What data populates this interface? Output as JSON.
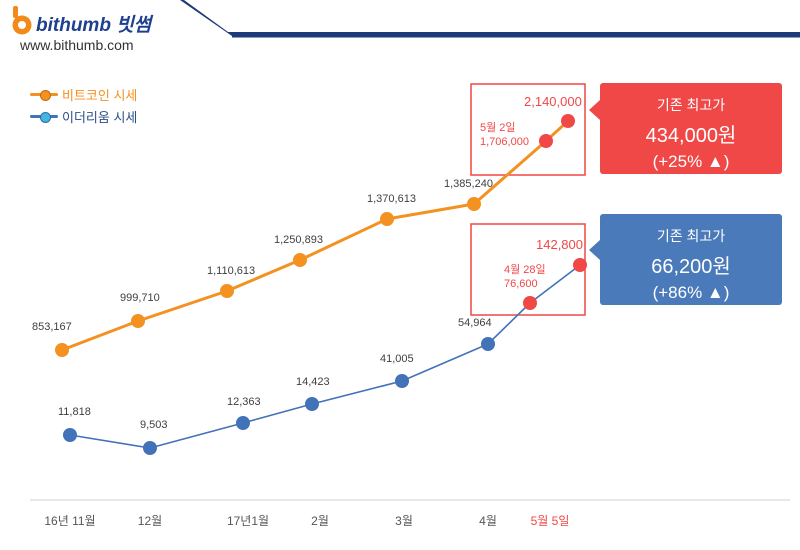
{
  "brand": {
    "name": "bithumb 빗썸",
    "url": "www.bithumb.com"
  },
  "colors": {
    "bitcoin": "#f39121",
    "ethereum": "#4272b8",
    "highlight": "#f04747",
    "callout_eth": "#4a7ab9"
  },
  "legend": [
    {
      "label": "비트코인 시세",
      "color": "#f39121"
    },
    {
      "label": "이더리움 시세",
      "color": "#4272b8"
    }
  ],
  "chart_data": {
    "type": "line",
    "categories": [
      "16년 11월",
      "12월",
      "17년1월",
      "2월",
      "3월",
      "4월",
      "5월 5일"
    ],
    "highlight_category": "5월 5일",
    "series": [
      {
        "name": "비트코인 시세",
        "color": "#f39121",
        "points": [
          {
            "x": "16년 11월",
            "y": 853167,
            "label": "853,167"
          },
          {
            "x": "12월",
            "y": 999710,
            "label": "999,710"
          },
          {
            "x": "17년1월",
            "y": 1110613,
            "label": "1,110,613"
          },
          {
            "x": "2월",
            "y": 1250893,
            "label": "1,250,893"
          },
          {
            "x": "3월",
            "y": 1370613,
            "label": "1,370,613"
          },
          {
            "x": "4월",
            "y": 1385240,
            "label": "1,385,240"
          },
          {
            "x": "5월 2일",
            "y": 1706000,
            "label": "5월 2일\n1,706,000",
            "highlight": true
          },
          {
            "x": "5월 5일",
            "y": 2140000,
            "label": "2,140,000",
            "highlight": true
          }
        ]
      },
      {
        "name": "이더리움 시세",
        "color": "#4272b8",
        "points": [
          {
            "x": "16년 11월",
            "y": 11818,
            "label": "11,818"
          },
          {
            "x": "12월",
            "y": 9503,
            "label": "9,503"
          },
          {
            "x": "17년1월",
            "y": 12363,
            "label": "12,363"
          },
          {
            "x": "2월",
            "y": 14423,
            "label": "14,423"
          },
          {
            "x": "3월",
            "y": 41005,
            "label": "41,005"
          },
          {
            "x": "4월",
            "y": 54964,
            "label": "54,964"
          },
          {
            "x": "4월 28일",
            "y": 76600,
            "label": "4월 28일\n76,600",
            "highlight": true
          },
          {
            "x": "5월 5일",
            "y": 142800,
            "label": "142,800",
            "highlight": true
          }
        ]
      }
    ],
    "callouts": [
      {
        "series": "비트코인 시세",
        "title": "기존 최고가",
        "value": "434,000원",
        "change": "(+25% ▲)"
      },
      {
        "series": "이더리움 시세",
        "title": "기존 최고가",
        "value": "66,200원",
        "change": "(+86% ▲)"
      }
    ]
  }
}
